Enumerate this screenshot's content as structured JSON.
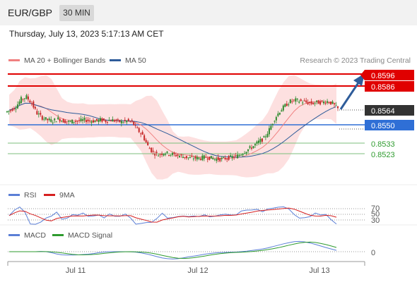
{
  "header": {
    "symbol": "EUR/GBP",
    "timeframe": "30 MIN",
    "datetime": "Thursday, July 13, 2023 5:17:13 AM CET"
  },
  "legend": {
    "main": [
      {
        "label": "MA 20 + Bollinger Bands",
        "color": "#f08080"
      },
      {
        "label": "MA 50",
        "color": "#2e5c9a"
      }
    ],
    "credit": "Research © 2023 Trading Central",
    "rsi": [
      {
        "label": "RSI",
        "color": "#5b7fd6"
      },
      {
        "label": "9MA",
        "color": "#d62020"
      }
    ],
    "macd": [
      {
        "label": "MACD",
        "color": "#5b7fd6"
      },
      {
        "label": "MACD Signal",
        "color": "#2e9b2e"
      }
    ]
  },
  "price_tags": [
    {
      "value": "0.8596",
      "kind": "resistance",
      "color": "#e00000"
    },
    {
      "value": "0.8586",
      "kind": "resistance",
      "color": "#e00000"
    },
    {
      "value": "0.8564",
      "kind": "last",
      "color": "#333333"
    },
    {
      "value": "0.8550",
      "kind": "pivot",
      "color": "#2f6fd6"
    },
    {
      "value": "0.8533",
      "kind": "support",
      "color": "#2e9b2e"
    },
    {
      "value": "0.8523",
      "kind": "support",
      "color": "#2e9b2e"
    }
  ],
  "rsi_levels": [
    "70",
    "50",
    "30"
  ],
  "macd_levels": [
    "0"
  ],
  "x_labels": [
    "Jul 11",
    "Jul 12",
    "Jul 13"
  ],
  "chart_data": {
    "type": "candlestick",
    "title": "",
    "y_range": [
      0.8512,
      0.8602
    ],
    "levels": {
      "resistance": [
        0.8596,
        0.8586
      ],
      "pivot": 0.855,
      "support": [
        0.8533,
        0.8523
      ],
      "last": 0.8564
    },
    "x": [
      "Jul 11",
      "Jul 12",
      "Jul 13"
    ],
    "close_series": [
      0.8563,
      0.8566,
      0.8573,
      0.8575,
      0.8569,
      0.856,
      0.8556,
      0.8554,
      0.8553,
      0.8555,
      0.8553,
      0.8552,
      0.8553,
      0.8553,
      0.8554,
      0.8553,
      0.8553,
      0.8554,
      0.8553,
      0.8554,
      0.8553,
      0.8552,
      0.8553,
      0.8552,
      0.8545,
      0.854,
      0.853,
      0.8524,
      0.8522,
      0.8524,
      0.8523,
      0.8522,
      0.8521,
      0.852,
      0.8519,
      0.8519,
      0.8519,
      0.852,
      0.8519,
      0.8518,
      0.8518,
      0.8519,
      0.852,
      0.8521,
      0.8524,
      0.8527,
      0.853,
      0.8534,
      0.8537,
      0.8545,
      0.8555,
      0.8562,
      0.8567,
      0.8571,
      0.8572,
      0.8571,
      0.857,
      0.8569,
      0.857,
      0.857,
      0.8571,
      0.8569,
      0.8564
    ]
  }
}
